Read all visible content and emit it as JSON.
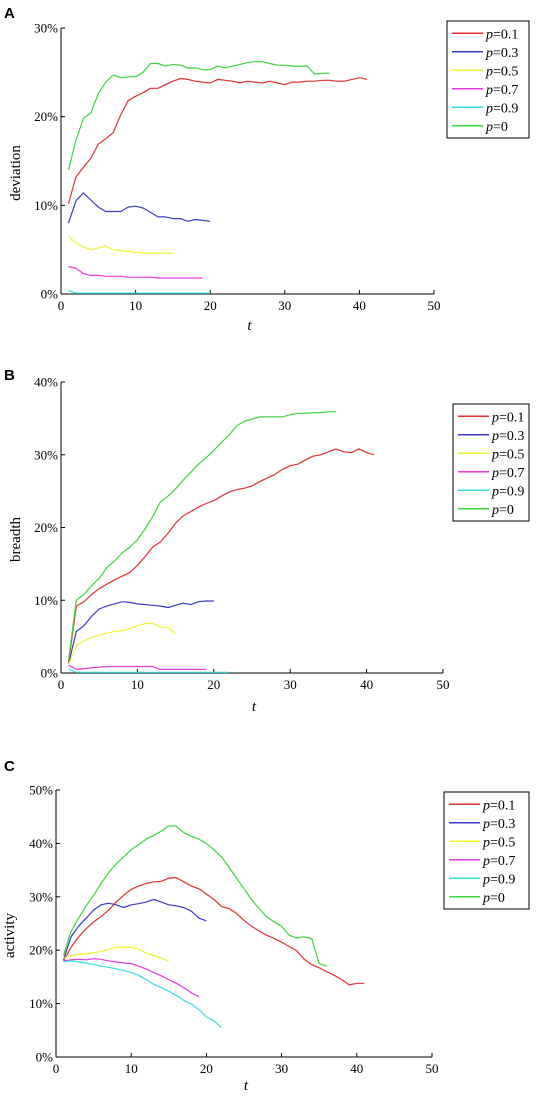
{
  "chart_data": [
    {
      "type": "line",
      "panel": "A",
      "xlabel": "t",
      "ylabel": "deviation",
      "xlim": [
        0,
        50
      ],
      "ylim": [
        0,
        30
      ],
      "xticks": [
        "0",
        "10",
        "20",
        "30",
        "40",
        "50"
      ],
      "yticks": [
        "0%",
        "10%",
        "20%",
        "30%"
      ],
      "legend_position": "top-right",
      "grid": false,
      "series": [
        {
          "name": "p=0.1",
          "color": "#e03131",
          "x": [
            1,
            2,
            3,
            4,
            5,
            6,
            7,
            8,
            9,
            10,
            11,
            12,
            13,
            14,
            15,
            16,
            17,
            18,
            19,
            20,
            21,
            22,
            23,
            24,
            25,
            26,
            27,
            28,
            29,
            30,
            31,
            32,
            33,
            34,
            35,
            36,
            37,
            38,
            39,
            40,
            41
          ],
          "y": [
            10.2,
            13.2,
            14.3,
            15.3,
            16.9,
            17.5,
            18.2,
            20.2,
            21.8,
            22.3,
            22.7,
            23.2,
            23.2,
            23.6,
            24.0,
            24.3,
            24.2,
            24.0,
            23.9,
            23.8,
            24.2,
            24.1,
            24.0,
            23.8,
            24.0,
            23.9,
            23.8,
            24.0,
            23.8,
            23.6,
            23.9,
            23.9,
            24.0,
            24.0,
            24.1,
            24.1,
            24.0,
            24.0,
            24.2,
            24.4,
            24.2
          ]
        },
        {
          "name": "p=0.3",
          "color": "#3b3bc9",
          "x": [
            1,
            2,
            3,
            4,
            5,
            6,
            7,
            8,
            9,
            10,
            11,
            12,
            13,
            14,
            15,
            16,
            17,
            18,
            19,
            20
          ],
          "y": [
            8.0,
            10.5,
            11.4,
            10.6,
            9.8,
            9.3,
            9.3,
            9.3,
            9.8,
            9.9,
            9.7,
            9.2,
            8.7,
            8.7,
            8.5,
            8.5,
            8.2,
            8.4,
            8.3,
            8.2
          ]
        },
        {
          "name": "p=0.5",
          "color": "#f2f230",
          "x": [
            1,
            2,
            3,
            4,
            5,
            6,
            7,
            8,
            9,
            10,
            11,
            12,
            13,
            14,
            15
          ],
          "y": [
            6.5,
            5.8,
            5.3,
            5.0,
            5.2,
            5.4,
            5.0,
            4.9,
            4.8,
            4.7,
            4.6,
            4.6,
            4.6,
            4.6,
            4.6
          ]
        },
        {
          "name": "p=0.7",
          "color": "#e83ad9",
          "x": [
            1,
            2,
            3,
            4,
            5,
            6,
            7,
            8,
            9,
            10,
            11,
            12,
            13,
            14,
            15,
            16,
            17,
            18,
            19
          ],
          "y": [
            3.1,
            2.9,
            2.3,
            2.1,
            2.1,
            2.0,
            2.0,
            2.0,
            1.9,
            1.9,
            1.9,
            1.9,
            1.8,
            1.8,
            1.8,
            1.8,
            1.8,
            1.8,
            1.8
          ]
        },
        {
          "name": "p=0.9",
          "color": "#36e0e0",
          "x": [
            1,
            2,
            3,
            4,
            5,
            6,
            7,
            8,
            9,
            10,
            11,
            12,
            13,
            14,
            15,
            16,
            17,
            18,
            19,
            20
          ],
          "y": [
            0.4,
            0.1,
            0.1,
            0.1,
            0.1,
            0.1,
            0.1,
            0.1,
            0.1,
            0.1,
            0.1,
            0.1,
            0.1,
            0.1,
            0.1,
            0.1,
            0.1,
            0.1,
            0.1,
            0.1
          ]
        },
        {
          "name": "p=0",
          "color": "#3ed43e",
          "x": [
            1,
            2,
            3,
            4,
            5,
            6,
            7,
            8,
            9,
            10,
            11,
            12,
            13,
            14,
            15,
            16,
            17,
            18,
            19,
            20,
            21,
            22,
            23,
            24,
            25,
            26,
            27,
            28,
            29,
            30,
            31,
            32,
            33,
            34,
            35,
            36
          ],
          "y": [
            14.0,
            17.3,
            19.8,
            20.4,
            22.6,
            23.9,
            24.7,
            24.4,
            24.5,
            24.5,
            25.0,
            26.0,
            26.0,
            25.7,
            25.9,
            25.8,
            25.5,
            25.5,
            25.3,
            25.3,
            25.7,
            25.5,
            25.7,
            25.9,
            26.1,
            26.2,
            26.2,
            26.0,
            25.8,
            25.8,
            25.7,
            25.7,
            25.7,
            24.8,
            24.9,
            24.9
          ]
        }
      ]
    },
    {
      "type": "line",
      "panel": "B",
      "xlabel": "t",
      "ylabel": "breadth",
      "xlim": [
        0,
        50
      ],
      "ylim": [
        0,
        40
      ],
      "xticks": [
        "0",
        "10",
        "20",
        "30",
        "40",
        "50"
      ],
      "yticks": [
        "0%",
        "10%",
        "20%",
        "30%",
        "40%"
      ],
      "legend_position": "top-right",
      "grid": false,
      "series": [
        {
          "name": "p=0.1",
          "color": "#e03131",
          "x": [
            1,
            2,
            3,
            4,
            5,
            6,
            7,
            8,
            9,
            10,
            11,
            12,
            13,
            14,
            15,
            16,
            17,
            18,
            19,
            20,
            21,
            22,
            23,
            24,
            25,
            26,
            27,
            28,
            29,
            30,
            31,
            32,
            33,
            34,
            35,
            36,
            37,
            38,
            39,
            40,
            41
          ],
          "y": [
            1.5,
            9.2,
            9.8,
            10.8,
            11.6,
            12.2,
            12.8,
            13.3,
            13.8,
            14.8,
            16.0,
            17.3,
            18.0,
            19.2,
            20.6,
            21.6,
            22.2,
            22.8,
            23.3,
            23.7,
            24.3,
            24.9,
            25.2,
            25.4,
            25.7,
            26.3,
            26.8,
            27.3,
            28.0,
            28.5,
            28.7,
            29.3,
            29.8,
            30.0,
            30.4,
            30.8,
            30.4,
            30.3,
            30.8,
            30.3,
            30.0
          ]
        },
        {
          "name": "p=0.3",
          "color": "#3b3bc9",
          "x": [
            1,
            2,
            3,
            4,
            5,
            6,
            7,
            8,
            9,
            10,
            11,
            12,
            13,
            14,
            15,
            16,
            17,
            18,
            19,
            20
          ],
          "y": [
            1.3,
            5.7,
            6.5,
            7.8,
            8.8,
            9.2,
            9.5,
            9.8,
            9.7,
            9.5,
            9.4,
            9.3,
            9.2,
            9.0,
            9.3,
            9.6,
            9.4,
            9.8,
            9.9,
            9.9
          ]
        },
        {
          "name": "p=0.5",
          "color": "#f2f230",
          "x": [
            1,
            2,
            3,
            4,
            5,
            6,
            7,
            8,
            9,
            10,
            11,
            12,
            13,
            14,
            15
          ],
          "y": [
            1.2,
            3.8,
            4.4,
            4.9,
            5.2,
            5.5,
            5.7,
            5.8,
            6.1,
            6.5,
            6.8,
            6.8,
            6.3,
            6.3,
            5.3
          ]
        },
        {
          "name": "p=0.7",
          "color": "#e83ad9",
          "x": [
            1,
            2,
            3,
            4,
            5,
            6,
            7,
            8,
            9,
            10,
            11,
            12,
            13,
            14,
            15,
            16,
            17,
            18,
            19
          ],
          "y": [
            1.1,
            0.5,
            0.6,
            0.7,
            0.8,
            0.9,
            0.9,
            0.9,
            0.9,
            0.9,
            0.9,
            0.9,
            0.5,
            0.5,
            0.5,
            0.5,
            0.5,
            0.5,
            0.5
          ]
        },
        {
          "name": "p=0.9",
          "color": "#36e0e0",
          "x": [
            1,
            2,
            3,
            4,
            5,
            6,
            7,
            8,
            9,
            10,
            11,
            12,
            13,
            14,
            15,
            16,
            17,
            18,
            19,
            20,
            21,
            22
          ],
          "y": [
            0.5,
            0.1,
            0.1,
            0.1,
            0.1,
            0.1,
            0.1,
            0.1,
            0.1,
            0.1,
            0.1,
            0.1,
            0.1,
            0.1,
            0.1,
            0.1,
            0.1,
            0.1,
            0.1,
            0.1,
            0.1,
            0.1
          ]
        },
        {
          "name": "p=0",
          "color": "#3ed43e",
          "x": [
            1,
            2,
            3,
            4,
            5,
            6,
            7,
            8,
            9,
            10,
            11,
            12,
            13,
            14,
            15,
            16,
            17,
            18,
            19,
            20,
            21,
            22,
            23,
            24,
            25,
            26,
            27,
            28,
            29,
            30,
            31,
            32,
            33,
            34,
            35,
            36
          ],
          "y": [
            1.8,
            10.0,
            10.8,
            12.0,
            13.0,
            14.5,
            15.4,
            16.5,
            17.3,
            18.3,
            19.8,
            21.5,
            23.5,
            24.3,
            25.3,
            26.5,
            27.6,
            28.7,
            29.6,
            30.6,
            31.7,
            32.7,
            34.0,
            34.6,
            34.9,
            35.2,
            35.2,
            35.2,
            35.2,
            35.5,
            35.7,
            35.7,
            35.8,
            35.8,
            35.9,
            35.9
          ]
        }
      ]
    },
    {
      "type": "line",
      "panel": "C",
      "xlabel": "t",
      "ylabel": "activity",
      "xlim": [
        0,
        50
      ],
      "ylim": [
        0,
        50
      ],
      "xticks": [
        "0",
        "10",
        "20",
        "30",
        "40",
        "50"
      ],
      "yticks": [
        "0%",
        "10%",
        "20%",
        "30%",
        "40%",
        "50%"
      ],
      "legend_position": "top-right",
      "grid": false,
      "series": [
        {
          "name": "p=0.1",
          "color": "#e03131",
          "x": [
            1,
            2,
            3,
            4,
            5,
            6,
            7,
            8,
            9,
            10,
            11,
            12,
            13,
            14,
            15,
            16,
            17,
            18,
            19,
            20,
            21,
            22,
            23,
            24,
            25,
            26,
            27,
            28,
            29,
            30,
            31,
            32,
            33,
            34,
            35,
            36,
            37,
            38,
            39,
            40,
            41
          ],
          "y": [
            18.0,
            20.5,
            22.5,
            24.0,
            25.3,
            26.3,
            27.5,
            29.0,
            30.3,
            31.4,
            32.0,
            32.5,
            32.8,
            32.9,
            33.5,
            33.6,
            32.8,
            32.0,
            31.5,
            30.5,
            29.5,
            28.2,
            27.8,
            26.9,
            25.6,
            24.5,
            23.6,
            22.8,
            22.2,
            21.5,
            20.7,
            19.9,
            18.3,
            17.3,
            16.7,
            16.0,
            15.3,
            14.5,
            13.5,
            13.8,
            13.8
          ]
        },
        {
          "name": "p=0.3",
          "color": "#3b3bc9",
          "x": [
            1,
            2,
            3,
            4,
            5,
            6,
            7,
            8,
            9,
            10,
            11,
            12,
            13,
            14,
            15,
            16,
            17,
            18,
            19,
            20
          ],
          "y": [
            18.2,
            22.5,
            24.5,
            26.0,
            27.5,
            28.5,
            28.8,
            28.5,
            28.0,
            28.5,
            28.7,
            29.0,
            29.5,
            29.0,
            28.5,
            28.3,
            28.0,
            27.3,
            26.0,
            25.5
          ]
        },
        {
          "name": "p=0.5",
          "color": "#f2f230",
          "x": [
            1,
            2,
            3,
            4,
            5,
            6,
            7,
            8,
            9,
            10,
            11,
            12,
            13,
            14,
            15
          ],
          "y": [
            18.5,
            19.0,
            19.2,
            19.3,
            19.5,
            19.8,
            20.2,
            20.5,
            20.6,
            20.5,
            20.2,
            19.5,
            19.0,
            18.5,
            18.0
          ]
        },
        {
          "name": "p=0.7",
          "color": "#e83ad9",
          "x": [
            1,
            2,
            3,
            4,
            5,
            6,
            7,
            8,
            9,
            10,
            11,
            12,
            13,
            14,
            15,
            16,
            17,
            18,
            19
          ],
          "y": [
            18.0,
            18.2,
            18.3,
            18.2,
            18.4,
            18.3,
            18.0,
            17.8,
            17.6,
            17.5,
            17.0,
            16.5,
            15.8,
            15.2,
            14.5,
            13.8,
            13.0,
            12.0,
            11.3
          ]
        },
        {
          "name": "p=0.9",
          "color": "#36e0e0",
          "x": [
            1,
            2,
            3,
            4,
            5,
            6,
            7,
            8,
            9,
            10,
            11,
            12,
            13,
            14,
            15,
            16,
            17,
            18,
            19,
            20,
            21,
            22
          ],
          "y": [
            17.8,
            18.0,
            17.8,
            17.6,
            17.3,
            17.0,
            16.8,
            16.5,
            16.2,
            15.8,
            15.3,
            14.5,
            13.6,
            13.0,
            12.3,
            11.5,
            10.6,
            9.9,
            8.9,
            7.5,
            6.8,
            5.5
          ]
        },
        {
          "name": "p=0",
          "color": "#3ed43e",
          "x": [
            1,
            2,
            3,
            4,
            5,
            6,
            7,
            8,
            9,
            10,
            11,
            12,
            13,
            14,
            15,
            16,
            17,
            18,
            19,
            20,
            21,
            22,
            23,
            24,
            25,
            26,
            27,
            28,
            29,
            30,
            31,
            32,
            33,
            34,
            35,
            36
          ],
          "y": [
            19.0,
            23.5,
            26.0,
            28.3,
            30.3,
            32.5,
            34.5,
            36.2,
            37.5,
            38.8,
            39.8,
            40.8,
            41.5,
            42.3,
            43.3,
            43.2,
            42.0,
            41.3,
            40.8,
            40.0,
            38.8,
            37.5,
            35.5,
            33.5,
            31.5,
            29.5,
            27.8,
            26.3,
            25.3,
            24.5,
            22.8,
            22.3,
            22.5,
            22.2,
            17.5,
            17.0
          ]
        }
      ]
    }
  ]
}
